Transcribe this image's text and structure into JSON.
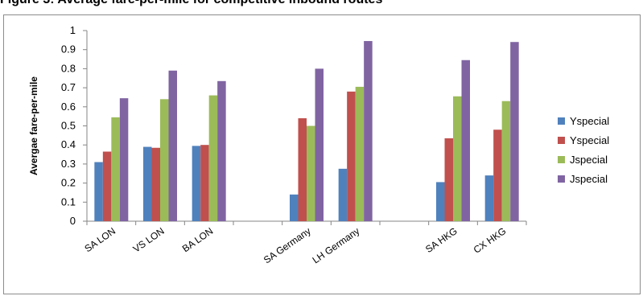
{
  "figure": {
    "title": "Figure 3: Average fare-per-mile for competitive inbound routes"
  },
  "chart_data": {
    "type": "bar",
    "title": "Figure 3: Average fare-per-mile for competitive inbound routes",
    "xlabel": "",
    "ylabel": "Avergae fare-per-mile",
    "ylim": [
      0,
      1
    ],
    "yticks": [
      "0",
      "0.1",
      "0.2",
      "0.3",
      "0.4",
      "0.5",
      "0.6",
      "0.7",
      "0.8",
      "0.9",
      "1"
    ],
    "grid": false,
    "legend_position": "right",
    "categories": [
      "SA LON",
      "VS LON",
      "BA LON",
      "",
      "SA Germany",
      "LH Germany",
      "",
      "SA HKG",
      "CX HKG"
    ],
    "series": [
      {
        "name": "Yspecial",
        "color": "#4f81bd",
        "values": [
          0.31,
          0.39,
          0.395,
          null,
          0.14,
          0.275,
          null,
          0.205,
          0.24
        ]
      },
      {
        "name": "Yspecial",
        "color": "#c0504d",
        "values": [
          0.365,
          0.385,
          0.4,
          null,
          0.54,
          0.68,
          null,
          0.435,
          0.48
        ]
      },
      {
        "name": "Jspecial",
        "color": "#9bbb59",
        "values": [
          0.545,
          0.64,
          0.66,
          null,
          0.5,
          0.705,
          null,
          0.655,
          0.63
        ]
      },
      {
        "name": "Jspecial",
        "color": "#8064a2",
        "values": [
          0.645,
          0.79,
          0.735,
          null,
          0.8,
          0.945,
          null,
          0.845,
          0.94
        ]
      }
    ]
  }
}
